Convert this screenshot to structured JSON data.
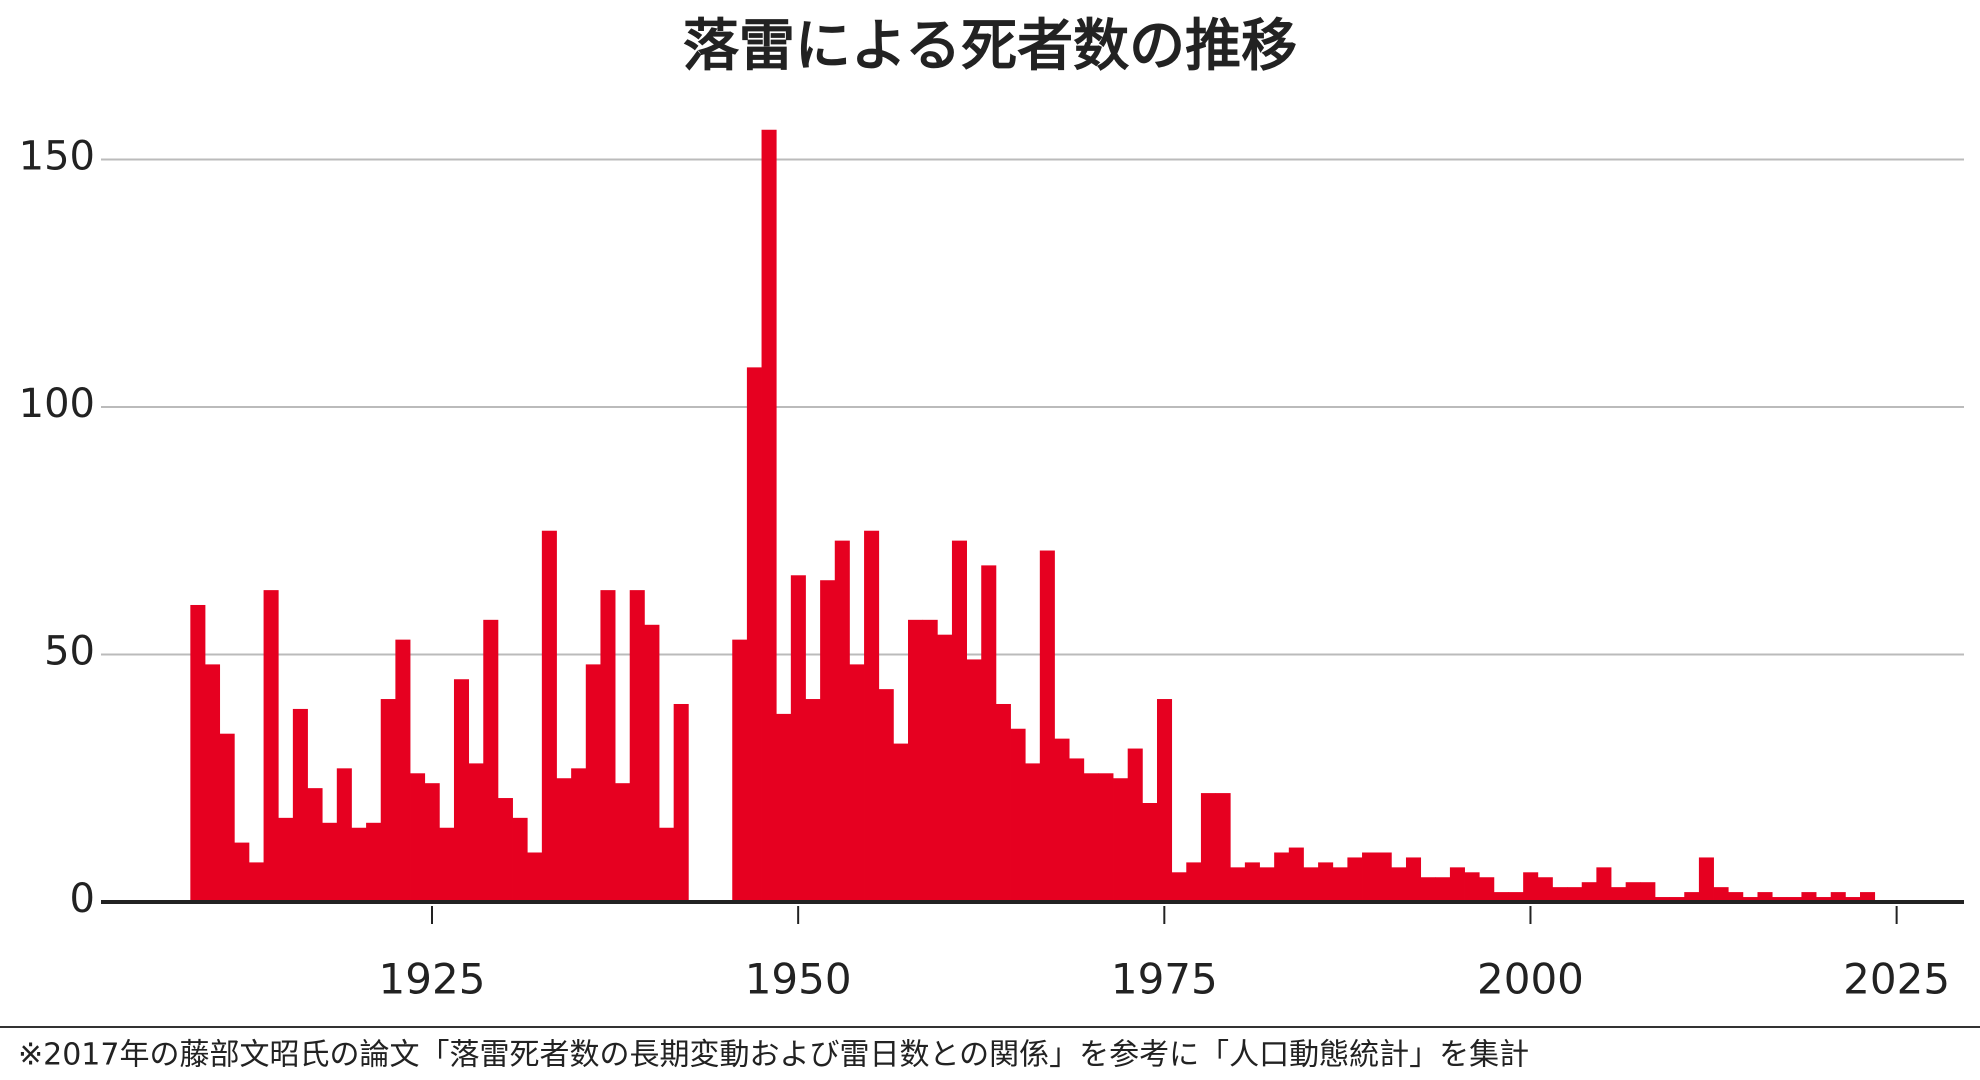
{
  "chart_data": {
    "type": "bar",
    "title": "落雷による死者数の推移",
    "x": [
      1909,
      1910,
      1911,
      1912,
      1913,
      1914,
      1915,
      1916,
      1917,
      1918,
      1919,
      1920,
      1921,
      1922,
      1923,
      1924,
      1925,
      1926,
      1927,
      1928,
      1929,
      1930,
      1931,
      1932,
      1933,
      1934,
      1935,
      1936,
      1937,
      1938,
      1939,
      1940,
      1941,
      1942,
      1943,
      1944,
      1945,
      1946,
      1947,
      1948,
      1949,
      1950,
      1951,
      1952,
      1953,
      1954,
      1955,
      1956,
      1957,
      1958,
      1959,
      1960,
      1961,
      1962,
      1963,
      1964,
      1965,
      1966,
      1967,
      1968,
      1969,
      1970,
      1971,
      1972,
      1973,
      1974,
      1975,
      1976,
      1977,
      1978,
      1979,
      1980,
      1981,
      1982,
      1983,
      1984,
      1985,
      1986,
      1987,
      1988,
      1989,
      1990,
      1991,
      1992,
      1993,
      1994,
      1995,
      1996,
      1997,
      1998,
      1999,
      2000,
      2001,
      2002,
      2003,
      2004,
      2005,
      2006,
      2007,
      2008,
      2009,
      2010,
      2011,
      2012,
      2013,
      2014,
      2015,
      2016,
      2017,
      2018,
      2019,
      2020,
      2021,
      2022,
      2023
    ],
    "values": [
      60,
      48,
      34,
      12,
      8,
      63,
      17,
      39,
      23,
      16,
      27,
      15,
      16,
      41,
      53,
      26,
      24,
      15,
      45,
      28,
      57,
      21,
      17,
      10,
      75,
      25,
      27,
      48,
      63,
      24,
      63,
      56,
      15,
      40,
      null,
      null,
      null,
      53,
      108,
      156,
      38,
      66,
      41,
      65,
      73,
      48,
      75,
      43,
      32,
      57,
      57,
      54,
      73,
      49,
      68,
      40,
      35,
      28,
      71,
      33,
      29,
      26,
      26,
      25,
      31,
      20,
      41,
      6,
      8,
      22,
      22,
      7,
      8,
      7,
      10,
      11,
      7,
      8,
      7,
      9,
      10,
      10,
      7,
      9,
      5,
      5,
      7,
      6,
      5,
      2,
      2,
      6,
      5,
      3,
      3,
      4,
      7,
      3,
      4,
      4,
      1,
      1,
      2,
      9,
      3,
      2,
      1,
      2,
      1,
      1,
      2,
      1,
      2,
      1,
      2
    ],
    "color": "#e60020",
    "xlim": [
      1902.4,
      2029.6
    ],
    "xticks": [
      1925,
      1950,
      1975,
      2000,
      2025
    ],
    "ylim": [
      0,
      161
    ],
    "yticks": [
      0,
      50,
      100,
      150
    ],
    "grid": true,
    "note": "※2017年の藤部文昭氏の論文「落雷死者数の長期変動および雷日数との関係」を参考に「人口動態統計」を集計"
  }
}
